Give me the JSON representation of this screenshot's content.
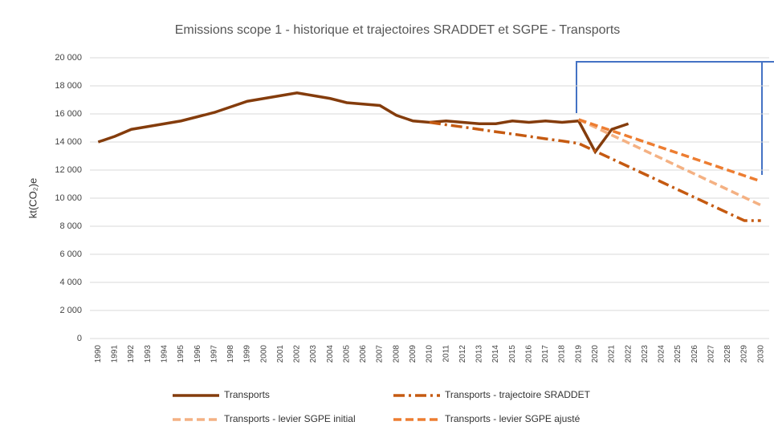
{
  "chart_data": {
    "type": "line",
    "title": "Emissions scope 1 - historique et trajectoires SRADDET et SGPE - Transports",
    "y_label": "kt(CO₂)e",
    "categories": [
      "1990",
      "1991",
      "1992",
      "1993",
      "1994",
      "1995",
      "1996",
      "1997",
      "1998",
      "1999",
      "2000",
      "2001",
      "2002",
      "2003",
      "2004",
      "2005",
      "2006",
      "2007",
      "2008",
      "2009",
      "2010",
      "2011",
      "2012",
      "2013",
      "2014",
      "2015",
      "2016",
      "2017",
      "2018",
      "2019",
      "2020",
      "2021",
      "2022",
      "2023",
      "2024",
      "2025",
      "2026",
      "2027",
      "2028",
      "2029",
      "2030"
    ],
    "series": [
      {
        "name": "Transports",
        "color": "#843c0c",
        "dash": "solid",
        "values": [
          14000,
          14400,
          14900,
          15100,
          15300,
          15500,
          15800,
          16100,
          16500,
          16900,
          17100,
          17300,
          17500,
          17300,
          17100,
          16800,
          16700,
          16600,
          15900,
          15500,
          15400,
          15500,
          15400,
          15300,
          15300,
          15500,
          15400,
          15500,
          15400,
          15500,
          13300,
          14900,
          15300,
          null,
          null,
          null,
          null,
          null,
          null,
          null,
          null
        ]
      },
      {
        "name": "Transports - trajectoire SRADDET",
        "color": "#c55a11",
        "dash": "dashdot",
        "values": [
          null,
          null,
          null,
          null,
          null,
          null,
          null,
          null,
          null,
          null,
          null,
          null,
          null,
          null,
          null,
          null,
          null,
          null,
          null,
          null,
          15400,
          15230,
          15070,
          14900,
          14730,
          14570,
          14400,
          14230,
          14070,
          13900,
          13350,
          12800,
          12250,
          11700,
          11150,
          10600,
          10050,
          9500,
          8950,
          8400,
          8400
        ]
      },
      {
        "name": "Transports - levier SGPE initial",
        "color": "#f4b183",
        "dash": "dash",
        "values": [
          null,
          null,
          null,
          null,
          null,
          null,
          null,
          null,
          null,
          null,
          null,
          null,
          null,
          null,
          null,
          null,
          null,
          null,
          null,
          null,
          null,
          null,
          null,
          null,
          null,
          null,
          null,
          null,
          null,
          15600,
          15050,
          14490,
          13940,
          13380,
          12830,
          12270,
          11720,
          11160,
          10610,
          10050,
          9500
        ]
      },
      {
        "name": "Transports - levier SGPE ajusté",
        "color": "#ed7d31",
        "dash": "dash",
        "values": [
          null,
          null,
          null,
          null,
          null,
          null,
          null,
          null,
          null,
          null,
          null,
          null,
          null,
          null,
          null,
          null,
          null,
          null,
          null,
          null,
          null,
          null,
          null,
          null,
          null,
          null,
          null,
          null,
          null,
          15600,
          15200,
          14800,
          14400,
          14000,
          13600,
          13200,
          12800,
          12400,
          12000,
          11600,
          11200
        ]
      }
    ],
    "ylim": [
      0,
      20000
    ],
    "yticks": [
      0,
      {
        "value": 2000,
        "label": "2 000"
      },
      {
        "value": 4000,
        "label": "4 000"
      },
      {
        "value": 6000,
        "label": "6 000"
      },
      {
        "value": 8000,
        "label": "8 000"
      },
      {
        "value": 10000,
        "label": "10 000"
      },
      {
        "value": 12000,
        "label": "12 000"
      },
      {
        "value": 14000,
        "label": "14 000"
      },
      {
        "value": 16000,
        "label": "16 000"
      },
      {
        "value": 18000,
        "label": "18 000"
      },
      {
        "value": 20000,
        "label": "20 000"
      }
    ],
    "grid": true,
    "legend": "bottom"
  }
}
